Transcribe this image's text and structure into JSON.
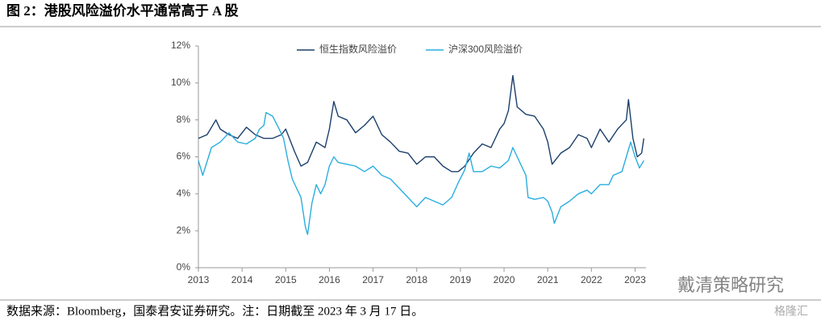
{
  "header": {
    "title": "图 2：港股风险溢价水平通常高于 A 股"
  },
  "chart_data": {
    "type": "line",
    "xlim": [
      2013,
      2023.25
    ],
    "xticks": [
      2013,
      2014,
      2015,
      2016,
      2017,
      2018,
      2019,
      2020,
      2021,
      2022,
      2023
    ],
    "ylim": [
      0,
      12
    ],
    "yticks": [
      {
        "value": 0,
        "label": "0%"
      },
      {
        "value": 2,
        "label": "2%"
      },
      {
        "value": 4,
        "label": "4%"
      },
      {
        "value": 6,
        "label": "6%"
      },
      {
        "value": 8,
        "label": "8%"
      },
      {
        "value": 10,
        "label": "10%"
      },
      {
        "value": 12,
        "label": "12%"
      }
    ],
    "legend": "top",
    "series": [
      {
        "name": "恒生指数风险溢价",
        "color": "#1b3f6b",
        "x": [
          2013.0,
          2013.2,
          2013.4,
          2013.5,
          2013.7,
          2013.9,
          2014.1,
          2014.3,
          2014.5,
          2014.7,
          2014.9,
          2015.0,
          2015.2,
          2015.35,
          2015.5,
          2015.7,
          2015.9,
          2016.0,
          2016.1,
          2016.2,
          2016.4,
          2016.6,
          2016.8,
          2017.0,
          2017.2,
          2017.4,
          2017.6,
          2017.8,
          2018.0,
          2018.2,
          2018.4,
          2018.6,
          2018.8,
          2018.95,
          2019.1,
          2019.3,
          2019.5,
          2019.7,
          2019.9,
          2020.0,
          2020.1,
          2020.2,
          2020.3,
          2020.5,
          2020.7,
          2020.9,
          2021.0,
          2021.1,
          2021.3,
          2021.5,
          2021.7,
          2021.9,
          2022.0,
          2022.2,
          2022.4,
          2022.6,
          2022.8,
          2022.85,
          2022.95,
          2023.05,
          2023.15,
          2023.2
        ],
        "values": [
          7.0,
          7.2,
          8.0,
          7.5,
          7.2,
          7.0,
          7.6,
          7.2,
          7.0,
          7.0,
          7.2,
          7.5,
          6.3,
          5.5,
          5.7,
          6.8,
          6.5,
          7.5,
          9.0,
          8.2,
          8.0,
          7.3,
          7.7,
          8.2,
          7.2,
          6.8,
          6.3,
          6.2,
          5.6,
          6.0,
          6.0,
          5.5,
          5.2,
          5.2,
          5.5,
          6.2,
          6.7,
          6.5,
          7.5,
          7.8,
          8.5,
          10.4,
          8.7,
          8.3,
          8.2,
          7.5,
          6.8,
          5.6,
          6.2,
          6.5,
          7.2,
          7.0,
          6.5,
          7.5,
          6.8,
          7.5,
          8.0,
          9.1,
          7.0,
          6.0,
          6.2,
          7.0
        ]
      },
      {
        "name": "沪深300风险溢价",
        "color": "#29aee0",
        "x": [
          2013.0,
          2013.1,
          2013.3,
          2013.5,
          2013.7,
          2013.9,
          2014.1,
          2014.3,
          2014.4,
          2014.5,
          2014.55,
          2014.7,
          2014.85,
          2014.95,
          2015.05,
          2015.15,
          2015.25,
          2015.35,
          2015.45,
          2015.5,
          2015.6,
          2015.7,
          2015.8,
          2015.9,
          2016.0,
          2016.1,
          2016.2,
          2016.4,
          2016.6,
          2016.8,
          2017.0,
          2017.2,
          2017.4,
          2017.6,
          2017.8,
          2018.0,
          2018.2,
          2018.4,
          2018.6,
          2018.8,
          2018.95,
          2019.1,
          2019.2,
          2019.3,
          2019.5,
          2019.7,
          2019.9,
          2020.1,
          2020.2,
          2020.3,
          2020.5,
          2020.55,
          2020.7,
          2020.9,
          2021.0,
          2021.1,
          2021.15,
          2021.3,
          2021.5,
          2021.7,
          2021.9,
          2022.0,
          2022.2,
          2022.4,
          2022.5,
          2022.7,
          2022.8,
          2022.9,
          2023.0,
          2023.1,
          2023.2
        ],
        "values": [
          5.8,
          5.0,
          6.5,
          6.8,
          7.3,
          6.8,
          6.7,
          7.0,
          7.5,
          7.7,
          8.4,
          8.2,
          7.5,
          7.0,
          5.8,
          4.8,
          4.3,
          3.8,
          2.2,
          1.8,
          3.5,
          4.5,
          4.0,
          4.5,
          5.5,
          6.0,
          5.7,
          5.6,
          5.5,
          5.2,
          5.5,
          5.0,
          4.8,
          4.3,
          3.8,
          3.3,
          3.8,
          3.6,
          3.4,
          3.8,
          4.6,
          5.3,
          6.2,
          5.2,
          5.2,
          5.5,
          5.4,
          5.8,
          6.5,
          6.0,
          5.0,
          3.8,
          3.7,
          3.8,
          3.6,
          3.0,
          2.4,
          3.3,
          3.6,
          4.0,
          4.2,
          4.0,
          4.5,
          4.5,
          5.0,
          5.2,
          6.0,
          6.8,
          6.0,
          5.4,
          5.8
        ]
      }
    ]
  },
  "watermarks": [
    "戴清策略研究",
    "格隆汇"
  ],
  "footer": {
    "source": "数据来源：Bloomberg，国泰君安证券研究。注：日期截至 2023 年 3 月 17 日。"
  }
}
